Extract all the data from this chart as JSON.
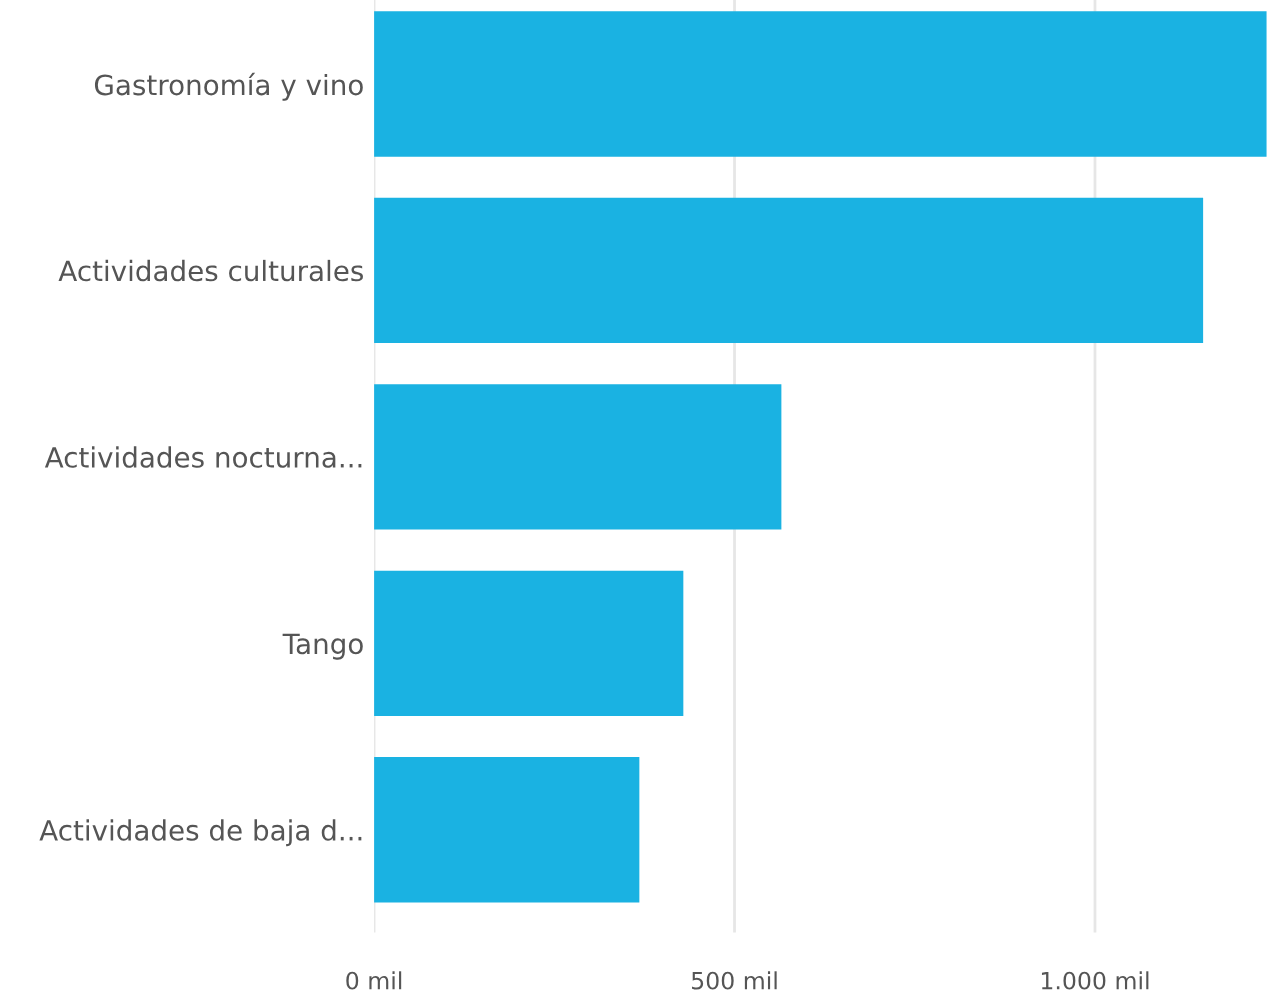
{
  "chart_data": {
    "type": "bar",
    "orientation": "horizontal",
    "categories": [
      "Gastronomía y vino",
      "Actividades culturales",
      "Actividades nocturna...",
      "Tango",
      "Actividades de baja d..."
    ],
    "values": [
      1238,
      1150,
      565,
      429,
      368
    ],
    "color": "#1ab2e2",
    "xlim": [
      0,
      1240
    ],
    "xticks": [
      {
        "value": 0,
        "label": "0 mil"
      },
      {
        "value": 500,
        "label": "500 mil"
      },
      {
        "value": 1000,
        "label": "1.000 mil"
      }
    ],
    "grid": "x"
  }
}
